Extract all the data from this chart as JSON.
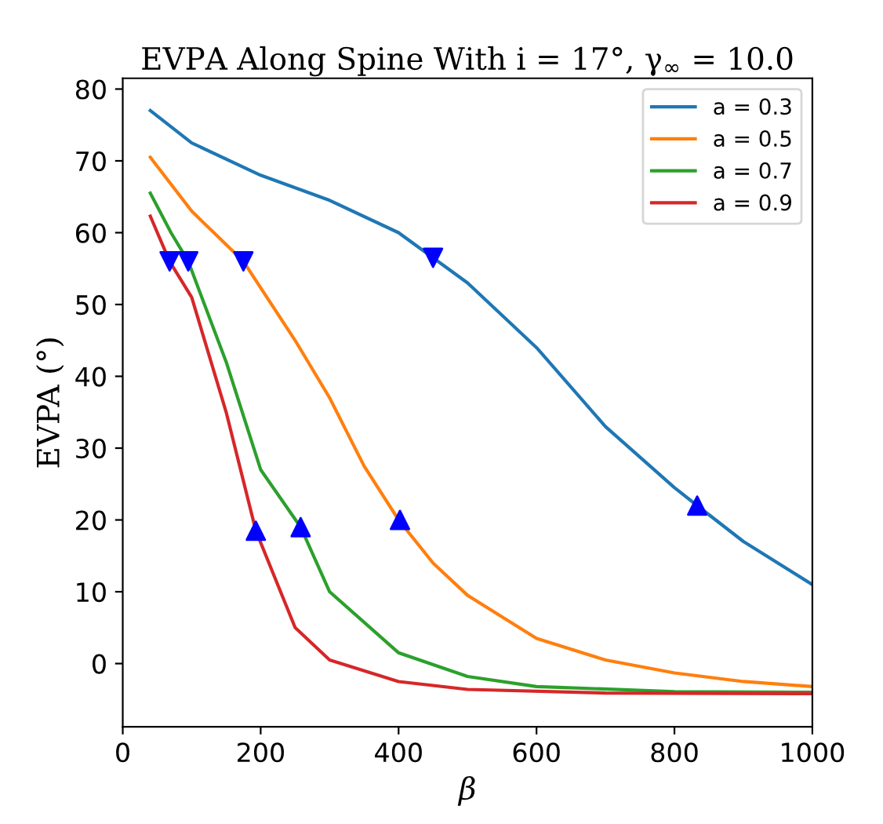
{
  "chart_data": {
    "type": "line",
    "title": "EVPA Along Spine With i = 17°, γ$_{∞}$ = 10.0",
    "xlabel": "β",
    "ylabel": "EVPA (°)",
    "xlim": [
      0,
      1000
    ],
    "xticks": [
      0,
      200,
      400,
      600,
      800,
      1000
    ],
    "ylim": [
      -8.8,
      81.5
    ],
    "yticks": [
      0,
      10,
      20,
      30,
      40,
      50,
      60,
      70,
      80
    ],
    "grid": false,
    "legend": "top right",
    "line_style": "solid",
    "series": [
      {
        "name": "a = 0.3",
        "color": "#1f77b4",
        "x": [
          40,
          100,
          200,
          300,
          400,
          450,
          500,
          600,
          700,
          800,
          833,
          900,
          1000
        ],
        "values": [
          77,
          72.5,
          68,
          64.5,
          60,
          56.5,
          53,
          44,
          33,
          24.5,
          22,
          17,
          11
        ]
      },
      {
        "name": "a = 0.5",
        "color": "#ff7f0e",
        "x": [
          40,
          100,
          175,
          250,
          300,
          350,
          400,
          450,
          500,
          600,
          700,
          800,
          900,
          1000
        ],
        "values": [
          70.5,
          63,
          56,
          45,
          37,
          27.5,
          20,
          14,
          9.5,
          3.5,
          0.5,
          -1.3,
          -2.5,
          -3.2
        ]
      },
      {
        "name": "a = 0.7",
        "color": "#2ca02c",
        "x": [
          40,
          70,
          95,
          150,
          200,
          258,
          300,
          400,
          500,
          600,
          800,
          1000
        ],
        "values": [
          65.5,
          60,
          56,
          42,
          27,
          19,
          10,
          1.5,
          -1.8,
          -3.2,
          -3.9,
          -4.0
        ]
      },
      {
        "name": "a = 0.9",
        "color": "#d62728",
        "x": [
          40,
          68,
          100,
          150,
          193,
          250,
          300,
          400,
          500,
          700,
          1000
        ],
        "values": [
          62.3,
          56,
          51,
          35,
          18.5,
          5,
          0.5,
          -2.5,
          -3.6,
          -4.1,
          -4.2
        ]
      },
      {
        "type": "scatter",
        "marker": "triangle_down",
        "color": "#0000ff",
        "x": [
          68,
          95,
          175,
          450
        ],
        "values": [
          56,
          56,
          56,
          56.5
        ]
      },
      {
        "type": "scatter",
        "marker": "triangle",
        "color": "#0000ff",
        "x": [
          193,
          258,
          402,
          833
        ],
        "values": [
          18.5,
          19,
          20,
          22
        ]
      }
    ]
  }
}
